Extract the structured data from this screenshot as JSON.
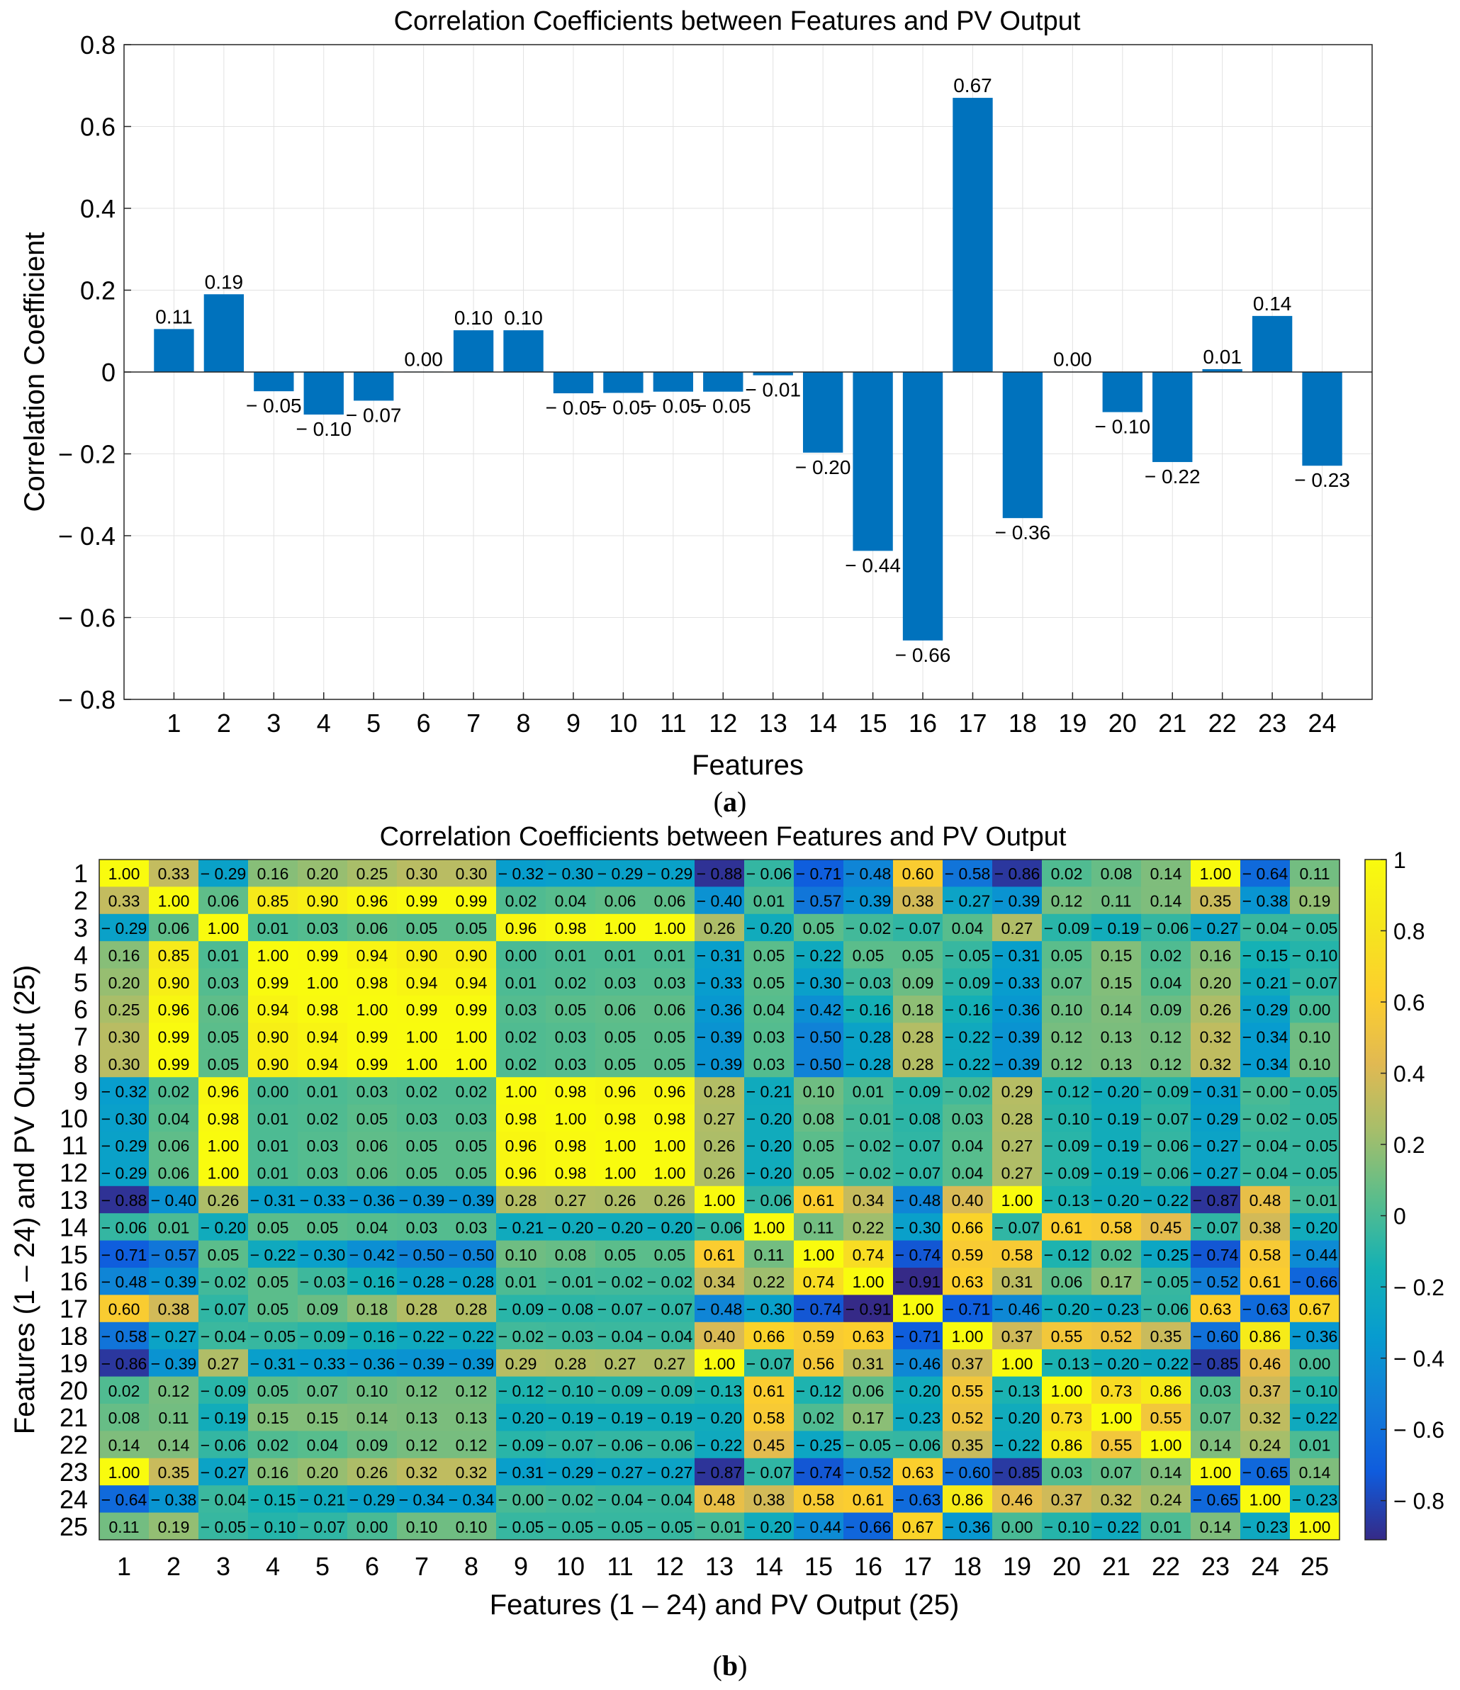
{
  "panel_a": {
    "caption_label": "a",
    "chart_data": {
      "type": "bar",
      "title": "Correlation Coefficients between Features and PV Output",
      "xlabel": "Features",
      "ylabel": "Correlation Coefficient",
      "categories": [
        "1",
        "2",
        "3",
        "4",
        "5",
        "6",
        "7",
        "8",
        "9",
        "10",
        "11",
        "12",
        "13",
        "14",
        "15",
        "16",
        "17",
        "18",
        "19",
        "20",
        "21",
        "22",
        "23",
        "24"
      ],
      "values": [
        0.105,
        0.19,
        -0.047,
        -0.104,
        -0.07,
        0.001,
        0.102,
        0.102,
        -0.052,
        -0.051,
        -0.048,
        -0.048,
        -0.008,
        -0.197,
        -0.437,
        -0.656,
        0.67,
        -0.357,
        0.001,
        -0.098,
        -0.22,
        0.007,
        0.137,
        -0.229
      ],
      "value_labels": [
        "0.11",
        "0.19",
        "− 0.05",
        "− 0.10",
        "− 0.07",
        "0.00",
        "0.10",
        "0.10",
        "− 0.05",
        "− 0.05",
        "− 0.05",
        "− 0.05",
        "− 0.01",
        "− 0.20",
        "− 0.44",
        "− 0.66",
        "0.67",
        "− 0.36",
        "0.00",
        "− 0.10",
        "− 0.22",
        "0.01",
        "0.14",
        "− 0.23"
      ],
      "ylim": [
        -0.8,
        0.8
      ],
      "yticks": [
        0.8,
        0.6,
        0.4,
        0.2,
        0,
        -0.2,
        -0.4,
        -0.6,
        -0.8
      ],
      "ytick_labels": [
        "0.8",
        "0.6",
        "0.4",
        "0.2",
        "0",
        "− 0.2",
        "− 0.4",
        "− 0.6",
        "− 0.8"
      ],
      "grid": true,
      "bar_color": "#0072BD"
    }
  },
  "panel_b": {
    "caption_label": "b",
    "chart_data": {
      "type": "heatmap",
      "title": "Correlation Coefficients between Features and PV Output",
      "xlabel": "Features (1 – 24) and PV Output (25)",
      "ylabel": "Features (1 – 24) and PV Output (25)",
      "row_labels": [
        "1",
        "2",
        "3",
        "4",
        "5",
        "6",
        "7",
        "8",
        "9",
        "10",
        "11",
        "12",
        "13",
        "14",
        "15",
        "16",
        "17",
        "18",
        "19",
        "20",
        "21",
        "22",
        "23",
        "24",
        "25"
      ],
      "col_labels": [
        "1",
        "2",
        "3",
        "4",
        "5",
        "6",
        "7",
        "8",
        "9",
        "10",
        "11",
        "12",
        "13",
        "14",
        "15",
        "16",
        "17",
        "18",
        "19",
        "20",
        "21",
        "22",
        "23",
        "24",
        "25"
      ],
      "colormap": "parula",
      "colorbar_range": [
        -0.91,
        1.0
      ],
      "colorbar_ticks": [
        1,
        0.8,
        0.6,
        0.4,
        0.2,
        0,
        -0.2,
        -0.4,
        -0.6,
        -0.8
      ],
      "colorbar_tick_labels": [
        "1",
        "0.8",
        "0.6",
        "0.4",
        "0.2",
        "0",
        "− 0.2",
        "− 0.4",
        "− 0.6",
        "− 0.8"
      ],
      "matrix": [
        [
          1.0,
          0.33,
          -0.29,
          0.16,
          0.2,
          0.25,
          0.3,
          0.3,
          -0.32,
          -0.3,
          -0.29,
          -0.29,
          -0.88,
          -0.06,
          -0.71,
          -0.48,
          0.6,
          -0.58,
          -0.86,
          0.02,
          0.08,
          0.14,
          1.0,
          -0.64,
          0.11
        ],
        [
          0.33,
          1.0,
          0.06,
          0.85,
          0.9,
          0.96,
          0.99,
          0.99,
          0.02,
          0.04,
          0.06,
          0.06,
          -0.4,
          0.01,
          -0.57,
          -0.39,
          0.38,
          -0.27,
          -0.39,
          0.12,
          0.11,
          0.14,
          0.35,
          -0.38,
          0.19
        ],
        [
          -0.29,
          0.06,
          1.0,
          0.01,
          0.03,
          0.06,
          0.05,
          0.05,
          0.96,
          0.98,
          1.0,
          1.0,
          0.26,
          -0.2,
          0.05,
          -0.02,
          -0.07,
          0.04,
          0.27,
          -0.09,
          -0.19,
          -0.06,
          -0.27,
          -0.04,
          -0.05
        ],
        [
          0.16,
          0.85,
          0.01,
          1.0,
          0.99,
          0.94,
          0.9,
          0.9,
          0.0,
          0.01,
          0.01,
          0.01,
          -0.31,
          0.05,
          -0.22,
          0.05,
          0.05,
          -0.05,
          -0.31,
          0.05,
          0.15,
          0.02,
          0.16,
          -0.15,
          -0.1
        ],
        [
          0.2,
          0.9,
          0.03,
          0.99,
          1.0,
          0.98,
          0.94,
          0.94,
          0.01,
          0.02,
          0.03,
          0.03,
          -0.33,
          0.05,
          -0.3,
          -0.03,
          0.09,
          -0.09,
          -0.33,
          0.07,
          0.15,
          0.04,
          0.2,
          -0.21,
          -0.07
        ],
        [
          0.25,
          0.96,
          0.06,
          0.94,
          0.98,
          1.0,
          0.99,
          0.99,
          0.03,
          0.05,
          0.06,
          0.06,
          -0.36,
          0.04,
          -0.42,
          -0.16,
          0.18,
          -0.16,
          -0.36,
          0.1,
          0.14,
          0.09,
          0.26,
          -0.29,
          0.0
        ],
        [
          0.3,
          0.99,
          0.05,
          0.9,
          0.94,
          0.99,
          1.0,
          1.0,
          0.02,
          0.03,
          0.05,
          0.05,
          -0.39,
          0.03,
          -0.5,
          -0.28,
          0.28,
          -0.22,
          -0.39,
          0.12,
          0.13,
          0.12,
          0.32,
          -0.34,
          0.1
        ],
        [
          0.3,
          0.99,
          0.05,
          0.9,
          0.94,
          0.99,
          1.0,
          1.0,
          0.02,
          0.03,
          0.05,
          0.05,
          -0.39,
          0.03,
          -0.5,
          -0.28,
          0.28,
          -0.22,
          -0.39,
          0.12,
          0.13,
          0.12,
          0.32,
          -0.34,
          0.1
        ],
        [
          -0.32,
          0.02,
          0.96,
          0.0,
          0.01,
          0.03,
          0.02,
          0.02,
          1.0,
          0.98,
          0.96,
          0.96,
          0.28,
          -0.21,
          0.1,
          0.01,
          -0.09,
          -0.02,
          0.29,
          -0.12,
          -0.2,
          -0.09,
          -0.31,
          -0.0,
          -0.05
        ],
        [
          -0.3,
          0.04,
          0.98,
          0.01,
          0.02,
          0.05,
          0.03,
          0.03,
          0.98,
          1.0,
          0.98,
          0.98,
          0.27,
          -0.2,
          0.08,
          -0.01,
          -0.08,
          0.03,
          0.28,
          -0.1,
          -0.19,
          -0.07,
          -0.29,
          -0.02,
          -0.05
        ],
        [
          -0.29,
          0.06,
          1.0,
          0.01,
          0.03,
          0.06,
          0.05,
          0.05,
          0.96,
          0.98,
          1.0,
          1.0,
          0.26,
          -0.2,
          0.05,
          -0.02,
          -0.07,
          0.04,
          0.27,
          -0.09,
          -0.19,
          -0.06,
          -0.27,
          -0.04,
          -0.05
        ],
        [
          -0.29,
          0.06,
          1.0,
          0.01,
          0.03,
          0.06,
          0.05,
          0.05,
          0.96,
          0.98,
          1.0,
          1.0,
          0.26,
          -0.2,
          0.05,
          -0.02,
          -0.07,
          0.04,
          0.27,
          -0.09,
          -0.19,
          -0.06,
          -0.27,
          -0.04,
          -0.05
        ],
        [
          -0.88,
          -0.4,
          0.26,
          -0.31,
          -0.33,
          -0.36,
          -0.39,
          -0.39,
          0.28,
          0.27,
          0.26,
          0.26,
          1.0,
          -0.06,
          0.61,
          0.34,
          -0.48,
          0.4,
          1.0,
          -0.13,
          -0.2,
          -0.22,
          -0.87,
          0.48,
          -0.01
        ],
        [
          -0.06,
          0.01,
          -0.2,
          0.05,
          0.05,
          0.04,
          0.03,
          0.03,
          -0.21,
          -0.2,
          -0.2,
          -0.2,
          -0.06,
          1.0,
          0.11,
          0.22,
          -0.3,
          0.66,
          -0.07,
          0.61,
          0.58,
          0.45,
          -0.07,
          0.38,
          -0.2
        ],
        [
          -0.71,
          -0.57,
          0.05,
          -0.22,
          -0.3,
          -0.42,
          -0.5,
          -0.5,
          0.1,
          0.08,
          0.05,
          0.05,
          0.61,
          0.11,
          1.0,
          0.74,
          -0.74,
          0.59,
          0.58,
          -0.12,
          0.02,
          -0.25,
          -0.74,
          0.58,
          -0.44
        ],
        [
          -0.48,
          -0.39,
          -0.02,
          0.05,
          -0.03,
          -0.16,
          -0.28,
          -0.28,
          0.01,
          -0.01,
          -0.02,
          -0.02,
          0.34,
          0.22,
          0.74,
          1.0,
          -0.91,
          0.63,
          0.31,
          0.06,
          0.17,
          -0.05,
          -0.52,
          0.61,
          -0.66
        ],
        [
          0.6,
          0.38,
          -0.07,
          0.05,
          0.09,
          0.18,
          0.28,
          0.28,
          -0.09,
          -0.08,
          -0.07,
          -0.07,
          -0.48,
          -0.3,
          -0.74,
          -0.91,
          1.0,
          -0.71,
          -0.46,
          -0.2,
          -0.23,
          -0.06,
          0.63,
          -0.63,
          0.67
        ],
        [
          -0.58,
          -0.27,
          -0.04,
          -0.05,
          -0.09,
          -0.16,
          -0.22,
          -0.22,
          -0.02,
          -0.03,
          -0.04,
          -0.04,
          0.4,
          0.66,
          0.59,
          0.63,
          -0.71,
          1.0,
          0.37,
          0.55,
          0.52,
          0.35,
          -0.6,
          0.86,
          -0.36
        ],
        [
          -0.86,
          -0.39,
          0.27,
          -0.31,
          -0.33,
          -0.36,
          -0.39,
          -0.39,
          0.29,
          0.28,
          0.27,
          0.27,
          1.0,
          -0.07,
          0.56,
          0.31,
          -0.46,
          0.37,
          1.0,
          -0.13,
          -0.2,
          -0.22,
          -0.85,
          0.46,
          0.0
        ],
        [
          0.02,
          0.12,
          -0.09,
          0.05,
          0.07,
          0.1,
          0.12,
          0.12,
          -0.12,
          -0.1,
          -0.09,
          -0.09,
          -0.13,
          0.61,
          -0.12,
          0.06,
          -0.2,
          0.55,
          -0.13,
          1.0,
          0.73,
          0.86,
          0.03,
          0.37,
          -0.1
        ],
        [
          0.08,
          0.11,
          -0.19,
          0.15,
          0.15,
          0.14,
          0.13,
          0.13,
          -0.2,
          -0.19,
          -0.19,
          -0.19,
          -0.2,
          0.58,
          0.02,
          0.17,
          -0.23,
          0.52,
          -0.2,
          0.73,
          1.0,
          0.55,
          0.07,
          0.32,
          -0.22
        ],
        [
          0.14,
          0.14,
          -0.06,
          0.02,
          0.04,
          0.09,
          0.12,
          0.12,
          -0.09,
          -0.07,
          -0.06,
          -0.06,
          -0.22,
          0.45,
          -0.25,
          -0.05,
          -0.06,
          0.35,
          -0.22,
          0.86,
          0.55,
          1.0,
          0.14,
          0.24,
          0.01
        ],
        [
          1.0,
          0.35,
          -0.27,
          0.16,
          0.2,
          0.26,
          0.32,
          0.32,
          -0.31,
          -0.29,
          -0.27,
          -0.27,
          -0.87,
          -0.07,
          -0.74,
          -0.52,
          0.63,
          -0.6,
          -0.85,
          0.03,
          0.07,
          0.14,
          1.0,
          -0.65,
          0.14
        ],
        [
          -0.64,
          -0.38,
          -0.04,
          -0.15,
          -0.21,
          -0.29,
          -0.34,
          -0.34,
          -0.0,
          -0.02,
          -0.04,
          -0.04,
          0.48,
          0.38,
          0.58,
          0.61,
          -0.63,
          0.86,
          0.46,
          0.37,
          0.32,
          0.24,
          -0.65,
          1.0,
          -0.23
        ],
        [
          0.11,
          0.19,
          -0.05,
          -0.1,
          -0.07,
          0.0,
          0.1,
          0.1,
          -0.05,
          -0.05,
          -0.05,
          -0.05,
          -0.01,
          -0.2,
          -0.44,
          -0.66,
          0.67,
          -0.36,
          0.0,
          -0.1,
          -0.22,
          0.01,
          0.14,
          -0.23,
          1.0
        ]
      ]
    }
  }
}
